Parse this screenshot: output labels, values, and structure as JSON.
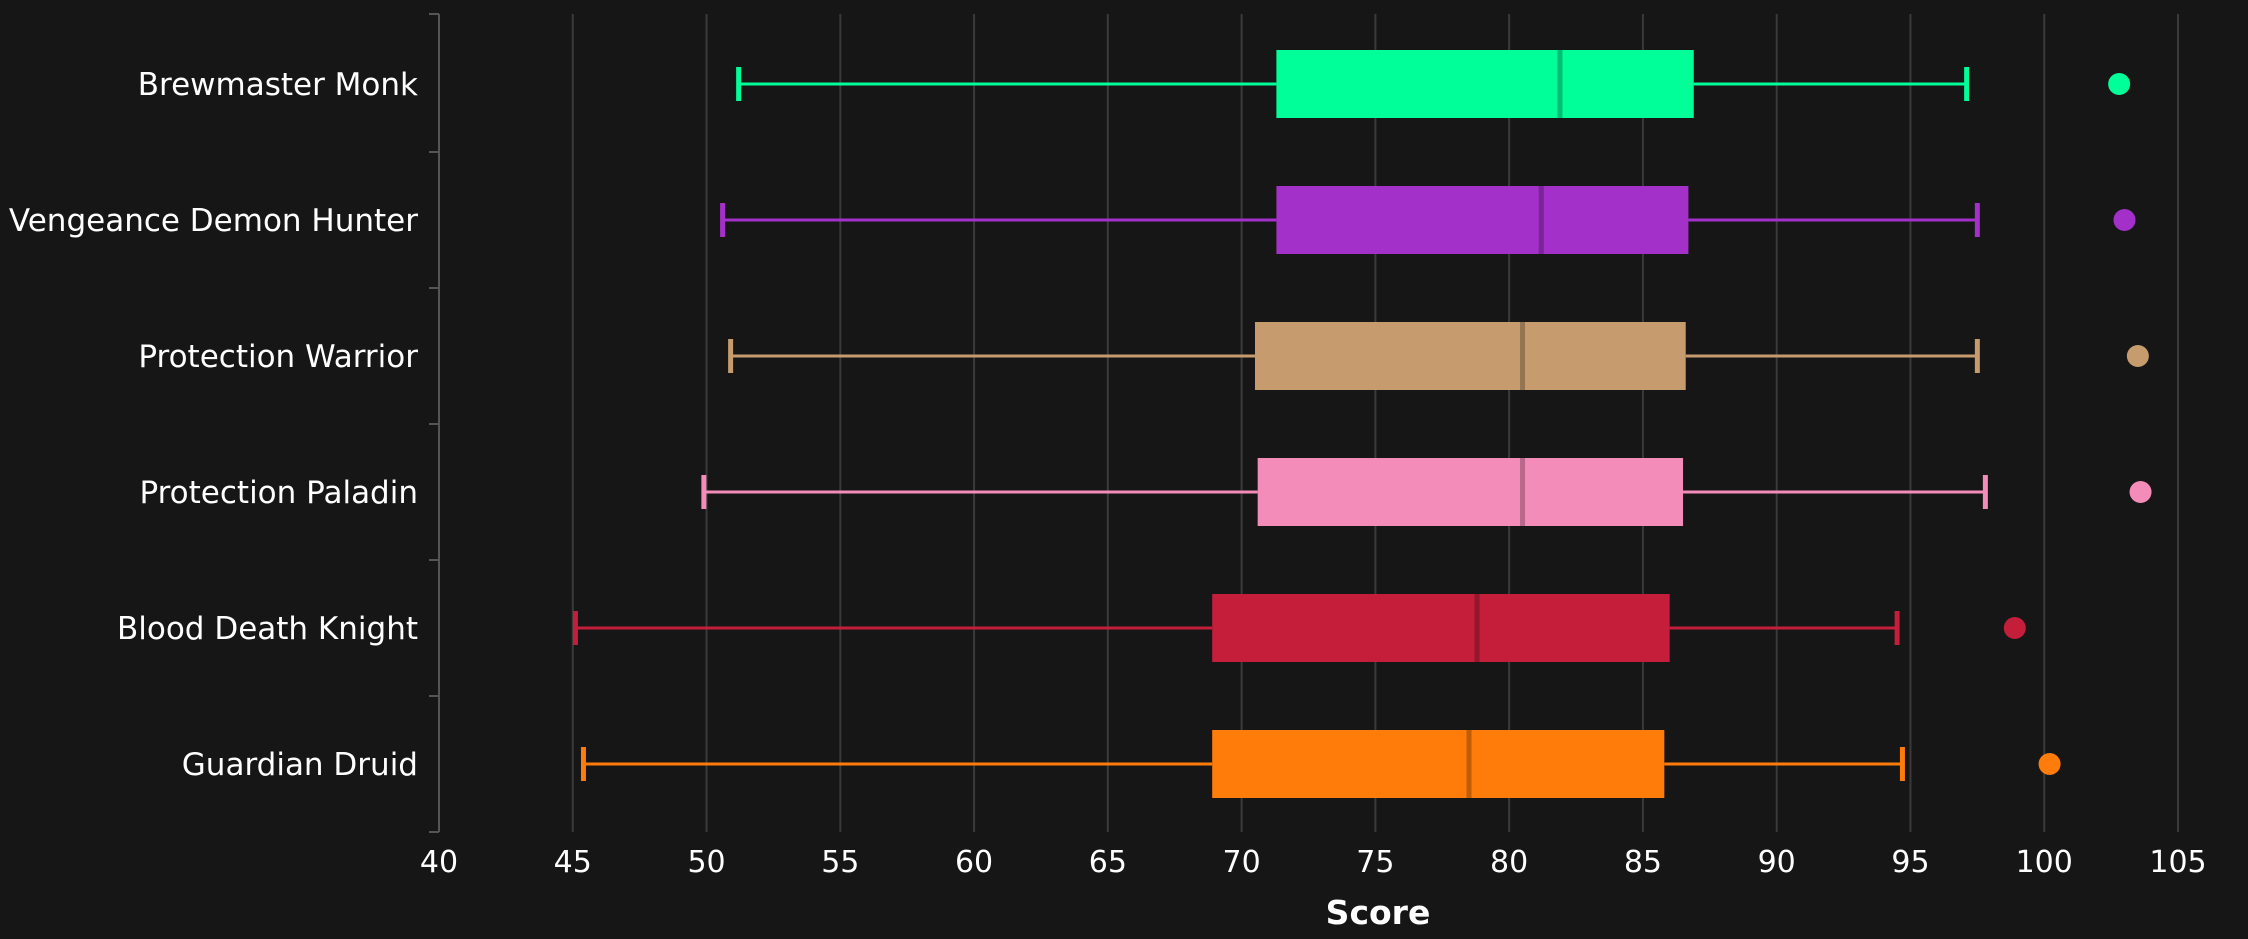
{
  "chart_data": {
    "type": "box",
    "orientation": "horizontal",
    "xlabel": "Score",
    "xlim": [
      40,
      105
    ],
    "xticks": [
      40,
      45,
      50,
      55,
      60,
      65,
      70,
      75,
      80,
      85,
      90,
      95,
      100,
      105
    ],
    "grid": "vertical",
    "background": "#161616",
    "series": [
      {
        "name": "Brewmaster Monk",
        "color": "#00FF98",
        "min": 51.2,
        "q1": 71.3,
        "median": 81.9,
        "q3": 86.9,
        "max": 97.1,
        "outliers": [
          102.8
        ]
      },
      {
        "name": "Vengeance Demon Hunter",
        "color": "#A330C9",
        "min": 50.6,
        "q1": 71.3,
        "median": 81.2,
        "q3": 86.7,
        "max": 97.5,
        "outliers": [
          103.0
        ]
      },
      {
        "name": "Protection Warrior",
        "color": "#C69B6D",
        "min": 50.9,
        "q1": 70.5,
        "median": 80.5,
        "q3": 86.6,
        "max": 97.5,
        "outliers": [
          103.5
        ]
      },
      {
        "name": "Protection Paladin",
        "color": "#F48CBA",
        "min": 49.9,
        "q1": 70.6,
        "median": 80.5,
        "q3": 86.5,
        "max": 97.8,
        "outliers": [
          103.6
        ]
      },
      {
        "name": "Blood Death Knight",
        "color": "#C41E3A",
        "min": 45.1,
        "q1": 68.9,
        "median": 78.8,
        "q3": 86.0,
        "max": 94.5,
        "outliers": [
          98.9
        ]
      },
      {
        "name": "Guardian Druid",
        "color": "#FF7C0A",
        "min": 45.4,
        "q1": 68.9,
        "median": 78.5,
        "q3": 85.8,
        "max": 94.7,
        "outliers": [
          100.2
        ]
      }
    ]
  }
}
